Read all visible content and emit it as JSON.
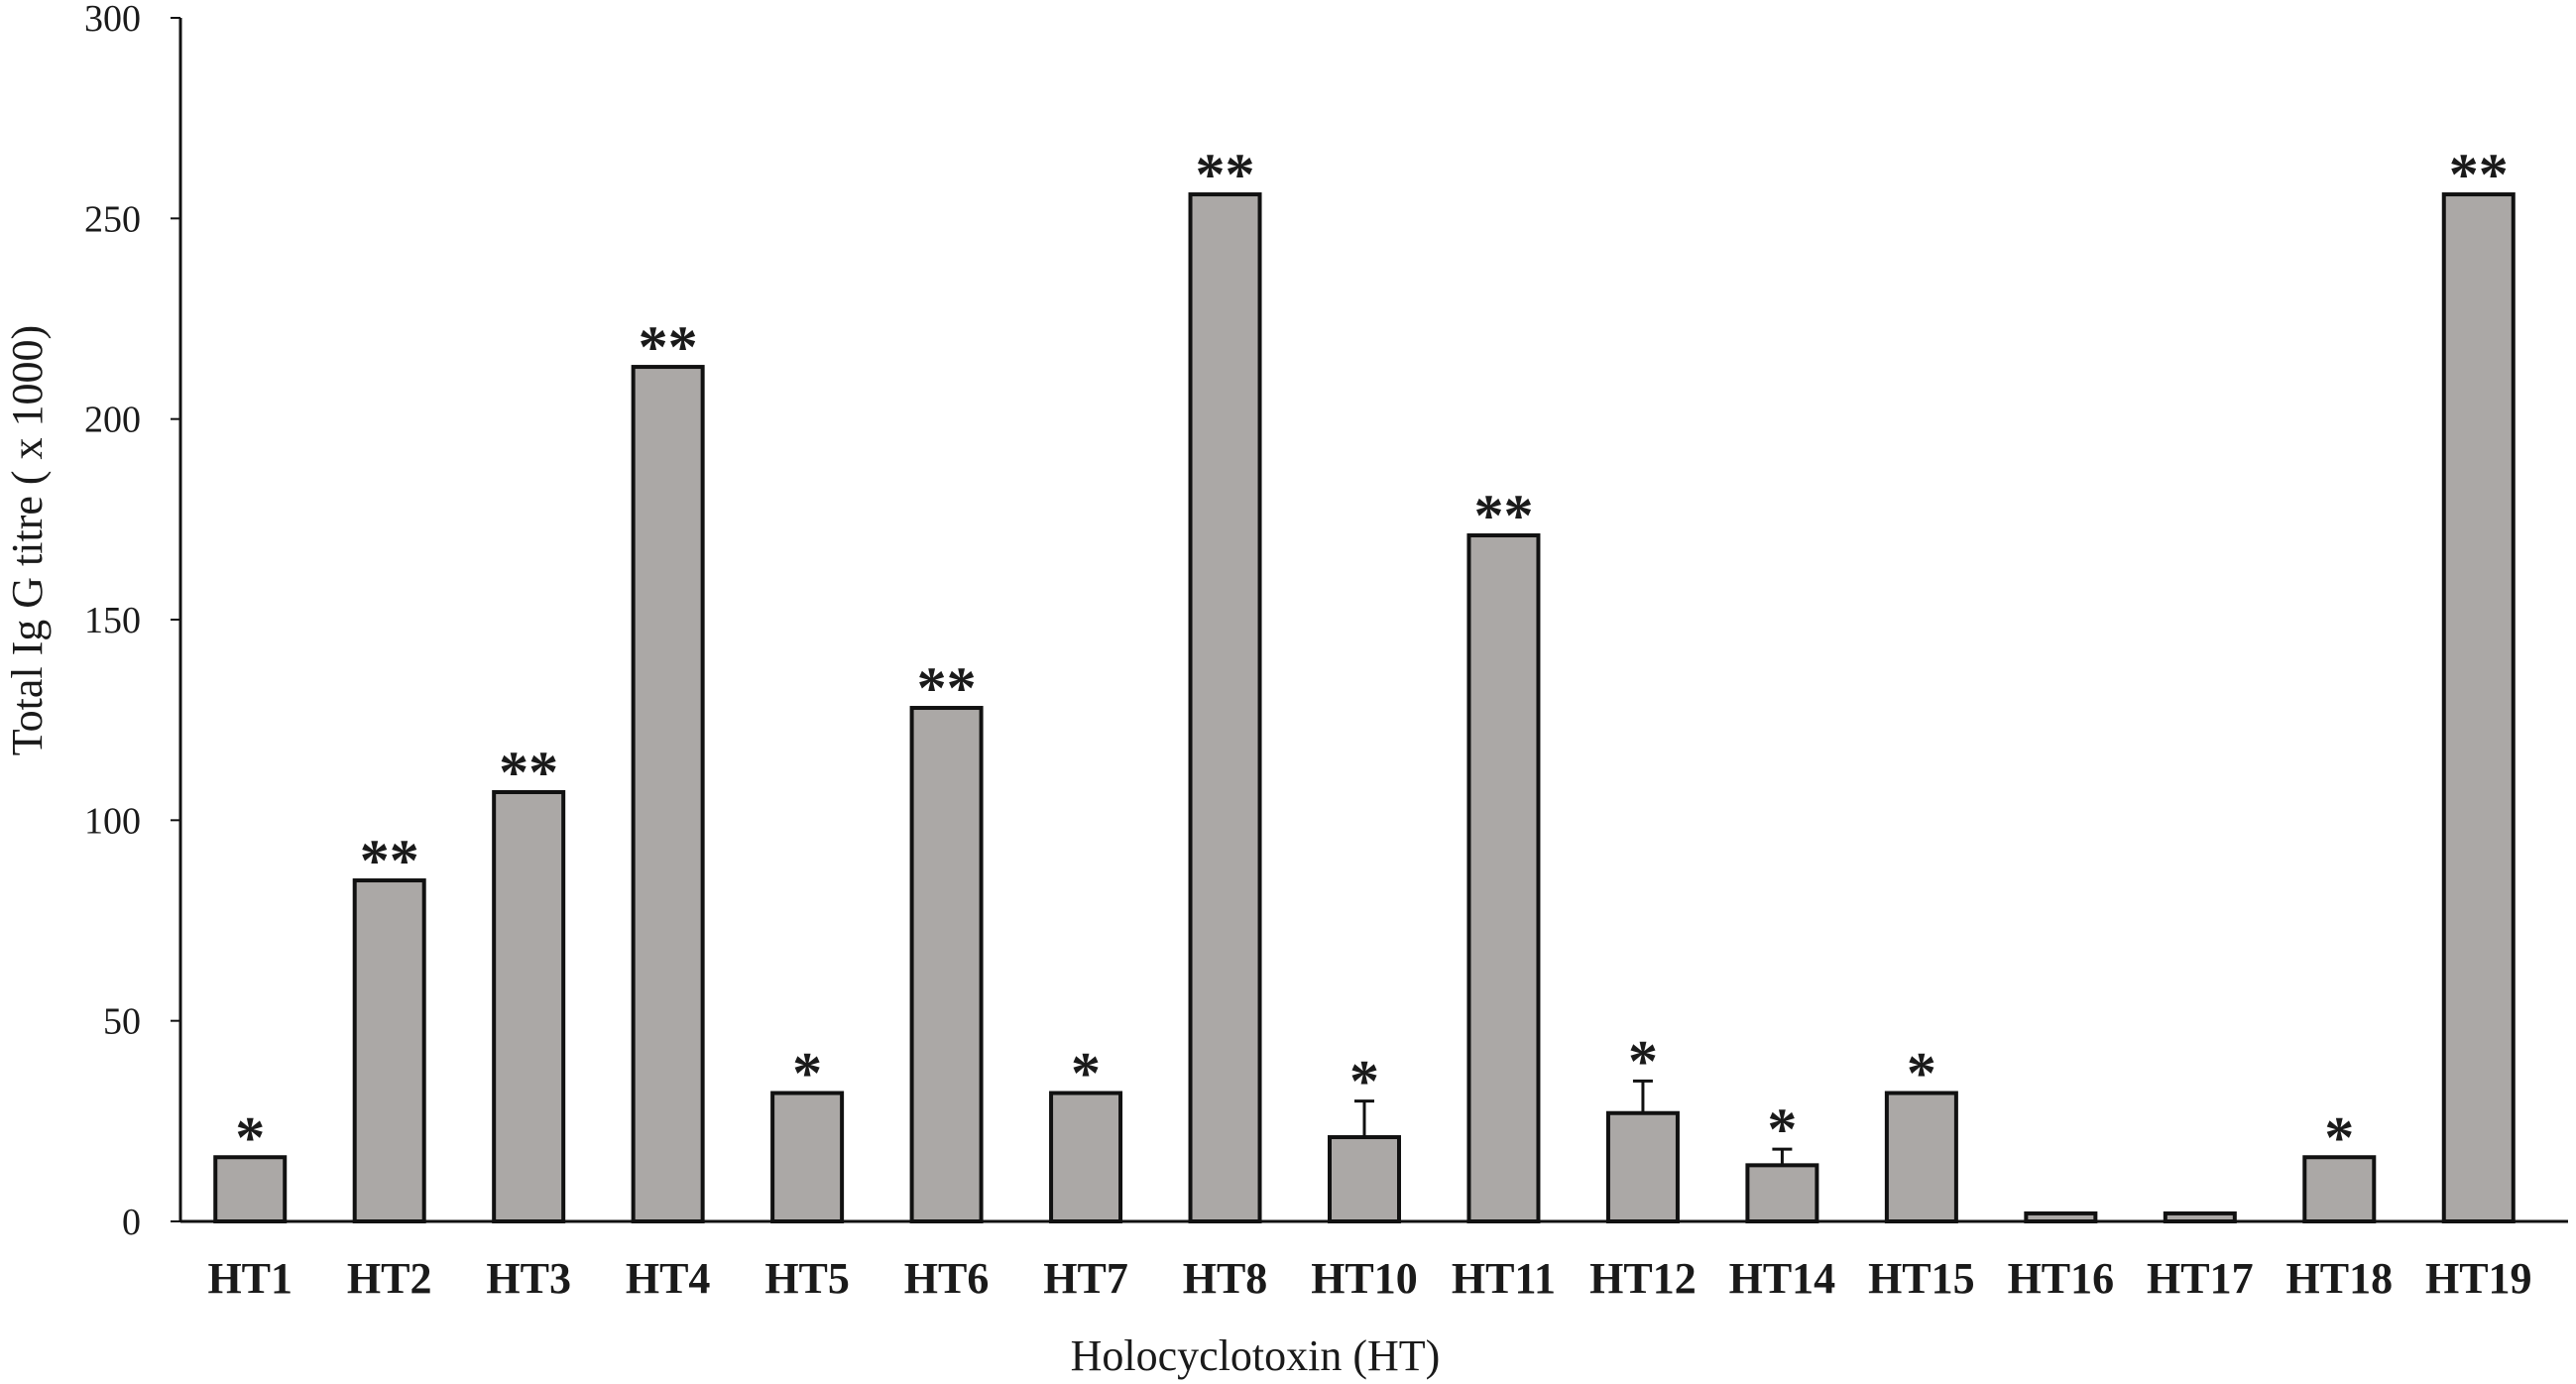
{
  "chart_data": {
    "type": "bar",
    "title": "",
    "xlabel": "Holocyclotoxin (HT)",
    "ylabel": "Total Ig G titre ( x 1000)",
    "ylim": [
      0,
      300
    ],
    "yticks": [
      0,
      50,
      100,
      150,
      200,
      250,
      300
    ],
    "grid": false,
    "legend": "none",
    "categories": [
      "HT1",
      "HT2",
      "HT3",
      "HT4",
      "HT5",
      "HT6",
      "HT7",
      "HT8",
      "HT10",
      "HT11",
      "HT12",
      "HT14",
      "HT15",
      "HT16",
      "HT17",
      "HT18",
      "HT19"
    ],
    "values": [
      16,
      85,
      107,
      213,
      32,
      128,
      32,
      256,
      21,
      171,
      27,
      14,
      32,
      2,
      2,
      16,
      256
    ],
    "error": [
      0,
      0,
      0,
      0,
      0,
      0,
      0,
      0,
      9,
      0,
      8,
      4,
      0,
      0,
      0,
      0,
      0
    ],
    "significance": [
      "*",
      "**",
      "**",
      "**",
      "*",
      "**",
      "*",
      "**",
      "*",
      "**",
      "*",
      "*",
      "*",
      "",
      "",
      "*",
      "**"
    ],
    "colors": {
      "bar_fill": "#aba8a6",
      "bar_stroke": "#111111",
      "axis": "#111111"
    }
  }
}
